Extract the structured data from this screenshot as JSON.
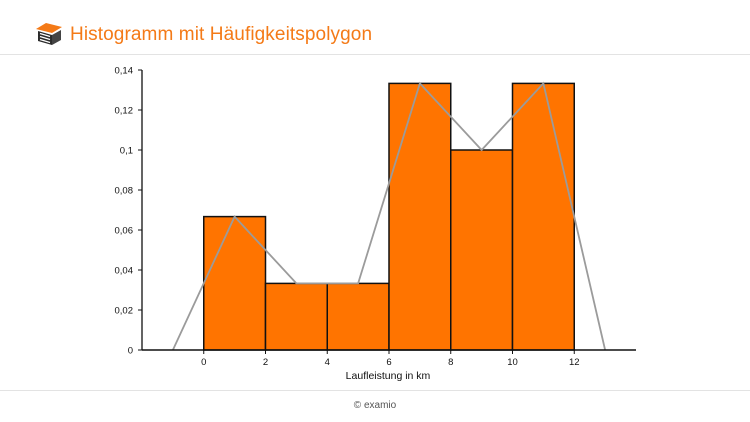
{
  "header": {
    "title": "Histogramm mit Häufigkeitspolygon",
    "logo_icon": "examio-book-logo-icon",
    "accent_color": "#f47a17"
  },
  "footer": {
    "credit": "© examio"
  },
  "chart_data": {
    "type": "bar",
    "subtype": "histogram with frequency polygon",
    "title": "",
    "xlabel": "Laufleistung in km",
    "ylabel": "",
    "bins": [
      {
        "from": 0,
        "to": 2,
        "value": 0.0667
      },
      {
        "from": 2,
        "to": 4,
        "value": 0.0333
      },
      {
        "from": 4,
        "to": 6,
        "value": 0.0333
      },
      {
        "from": 6,
        "to": 8,
        "value": 0.1333
      },
      {
        "from": 8,
        "to": 10,
        "value": 0.1
      },
      {
        "from": 10,
        "to": 12,
        "value": 0.1333
      }
    ],
    "polygon": {
      "x": [
        -1,
        1,
        3,
        5,
        7,
        9,
        11,
        13
      ],
      "y": [
        0,
        0.0667,
        0.0333,
        0.0333,
        0.1333,
        0.1,
        0.1333,
        0
      ]
    },
    "xlim": [
      -2,
      14
    ],
    "ylim": [
      0,
      0.14
    ],
    "x_ticks": [
      "0",
      "2",
      "4",
      "6",
      "8",
      "10",
      "12"
    ],
    "y_ticks": [
      "0",
      "0,02",
      "0,04",
      "0,06",
      "0,08",
      "0,1",
      "0,12",
      "0,14"
    ],
    "grid": false,
    "legend": "none",
    "colors": {
      "bar_fill": "#ff7400",
      "bar_stroke": "#111111",
      "polygon": "#9b9b9b",
      "axis": "#111111"
    }
  }
}
